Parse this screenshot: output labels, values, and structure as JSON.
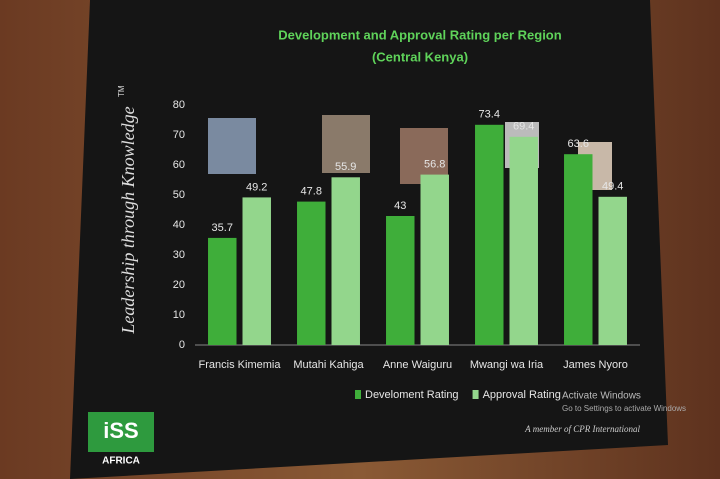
{
  "chart_data": {
    "type": "bar",
    "title": "Development and Approval Rating per Region",
    "subtitle": "(Central Kenya)",
    "categories": [
      "Francis Kimemia",
      "Mutahi Kahiga",
      "Anne Waiguru",
      "Mwangi wa Iria",
      "James Nyoro"
    ],
    "series": [
      {
        "name": "Develoment Rating",
        "color": "#3fae3a",
        "values": [
          35.7,
          47.8,
          43,
          73.4,
          63.6
        ]
      },
      {
        "name": "Approval Rating",
        "color": "#93d68c",
        "values": [
          49.2,
          55.9,
          56.8,
          69.4,
          49.4
        ]
      }
    ],
    "ylim": [
      0,
      80
    ],
    "yticks": [
      0,
      10,
      20,
      30,
      40,
      50,
      60,
      70,
      80
    ],
    "grid": false,
    "legend": "bottom"
  },
  "slide": {
    "tagline": "Leadership through Knowledge",
    "trademark": "TM",
    "logo": "iSS",
    "logo_sub": "AFRICA",
    "member": "A member of CPR International",
    "activate_title": "Activate Windows",
    "activate_text": "Go to Settings to activate Windows"
  }
}
